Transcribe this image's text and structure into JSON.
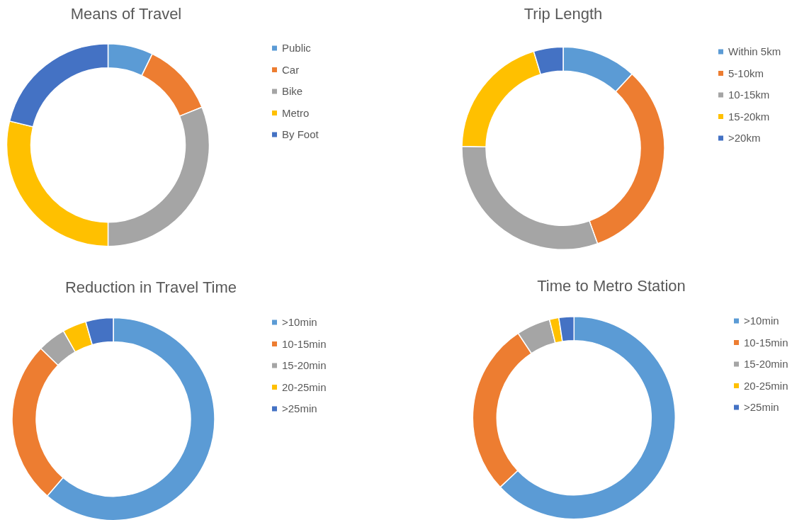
{
  "chart_data": [
    {
      "type": "donut",
      "title": "Means of Travel",
      "categories": [
        "Public",
        "Car",
        "Bike",
        "Metro",
        "By Foot"
      ],
      "values": [
        7.2,
        11.7,
        31.1,
        28.8,
        21.2
      ],
      "colors": [
        "#5b9bd5",
        "#ed7d31",
        "#a5a5a5",
        "#ffc000",
        "#4472c4"
      ],
      "legend": "right"
    },
    {
      "type": "donut",
      "title": "Trip Length",
      "categories": [
        "Within 5km",
        "5-10km",
        "10-15km",
        "15-20km",
        ">20km"
      ],
      "values": [
        11.9,
        32.6,
        30.8,
        20.0,
        4.7
      ],
      "colors": [
        "#5b9bd5",
        "#ed7d31",
        "#a5a5a5",
        "#ffc000",
        "#4472c4"
      ],
      "legend": "right"
    },
    {
      "type": "donut",
      "title": "Reduction in Travel Time",
      "categories": [
        ">10min",
        "10-15min",
        "15-20min",
        "20-25min",
        ">25min"
      ],
      "values": [
        61.3,
        26.0,
        4.5,
        3.8,
        4.4
      ],
      "colors": [
        "#5b9bd5",
        "#ed7d31",
        "#a5a5a5",
        "#ffc000",
        "#4472c4"
      ],
      "legend": "right"
    },
    {
      "type": "donut",
      "title": "Time to Metro Station",
      "categories": [
        ">10min",
        "10-15min",
        "15-20min",
        "20-25min",
        ">25min"
      ],
      "values": [
        63.0,
        27.7,
        5.4,
        1.5,
        2.4
      ],
      "colors": [
        "#5b9bd5",
        "#ed7d31",
        "#a5a5a5",
        "#ffc000",
        "#4472c4"
      ],
      "legend": "right"
    }
  ]
}
